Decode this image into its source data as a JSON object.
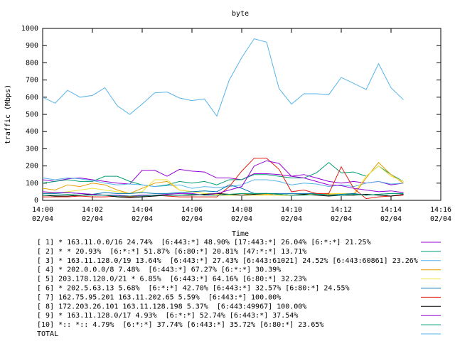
{
  "chart_data": {
    "type": "line",
    "title": "byte",
    "xlabel": "Time",
    "ylabel": "traffic (Mbps)",
    "xlim": [
      0,
      16
    ],
    "xticks": [
      {
        "value": 0,
        "label": "14:00\n02/04"
      },
      {
        "value": 2,
        "label": "14:02\n02/04"
      },
      {
        "value": 4,
        "label": "14:04\n02/04"
      },
      {
        "value": 6,
        "label": "14:06\n02/04"
      },
      {
        "value": 8,
        "label": "14:08\n02/04"
      },
      {
        "value": 10,
        "label": "14:10\n02/04"
      },
      {
        "value": 12,
        "label": "14:12\n02/04"
      },
      {
        "value": 14,
        "label": "14:14\n02/04"
      },
      {
        "value": 16,
        "label": "14:16\n02/04"
      }
    ],
    "ylim": [
      0,
      1000
    ],
    "yticks": [
      0,
      100,
      200,
      300,
      400,
      500,
      600,
      700,
      800,
      900,
      1000
    ],
    "x": [
      0,
      0.5,
      1,
      1.5,
      2,
      2.5,
      3,
      3.5,
      4,
      4.5,
      5,
      5.5,
      6,
      6.5,
      7,
      7.5,
      8,
      8.5,
      9,
      9.5,
      10,
      10.5,
      11,
      11.5,
      12,
      12.5,
      13,
      13.5,
      14,
      14.5
    ],
    "series": [
      {
        "name": "[ 1] * 163.11.0.0/16 24.74%  [6:443:*] 48.90% [17:443:*] 26.04% [6:*:*] 21.25%",
        "color": "#9400d3",
        "values": [
          120,
          110,
          125,
          130,
          120,
          110,
          100,
          95,
          175,
          175,
          140,
          180,
          170,
          165,
          130,
          130,
          120,
          155,
          155,
          150,
          140,
          150,
          130,
          110,
          100,
          110,
          100,
          110,
          90,
          100
        ]
      },
      {
        "name": "[ 2] * * 20.93%  [6:*:*] 51.87% [6:80:*] 20.81% [47:*:*] 13.71%",
        "color": "#009e73",
        "values": [
          100,
          110,
          120,
          110,
          110,
          140,
          140,
          110,
          90,
          80,
          90,
          110,
          100,
          110,
          90,
          120,
          120,
          150,
          150,
          140,
          130,
          130,
          160,
          220,
          160,
          165,
          140,
          200,
          150,
          110
        ]
      },
      {
        "name": "[ 3] * 163.11.128.0/19 13.64%  [6:443:*] 27.43% [6:443:61021] 24.52% [6:443:60861] 23.26%",
        "color": "#56b4e9",
        "values": [
          130,
          120,
          130,
          125,
          115,
          100,
          90,
          95,
          90,
          80,
          85,
          90,
          70,
          80,
          75,
          80,
          90,
          120,
          120,
          110,
          90,
          100,
          95,
          80,
          90,
          80,
          100,
          110,
          95,
          100
        ]
      },
      {
        "name": "[ 4] * 202.0.0.0/8 7.48%  [6:443:*] 67.27% [6:*:*] 30.39%",
        "color": "#e69f00",
        "values": [
          70,
          60,
          90,
          80,
          100,
          90,
          60,
          40,
          70,
          100,
          110,
          60,
          50,
          40,
          30,
          30,
          40,
          30,
          35,
          30,
          30,
          35,
          40,
          35,
          40,
          30,
          130,
          220,
          150,
          100
        ]
      },
      {
        "name": "[ 5] 203.178.120.0/21 * 6.85%  [6:443:*] 64.16% [6:80:*] 32.23%",
        "color": "#f0e442",
        "values": [
          50,
          40,
          50,
          60,
          70,
          60,
          50,
          40,
          50,
          120,
          120,
          60,
          50,
          40,
          35,
          30,
          30,
          30,
          30,
          30,
          30,
          35,
          35,
          40,
          40,
          40,
          140,
          200,
          140,
          110
        ]
      },
      {
        "name": "[ 6] * 202.5.63.13 5.68%  [6:*:*] 42.70% [6:443:*] 32.57% [6:80:*] 24.55%",
        "color": "#0072b2",
        "values": [
          40,
          40,
          45,
          40,
          35,
          45,
          40,
          40,
          45,
          40,
          40,
          45,
          50,
          55,
          50,
          90,
          70,
          40,
          40,
          40,
          40,
          40,
          40,
          30,
          35,
          40,
          30,
          35,
          40,
          40
        ]
      },
      {
        "name": "[ 7] 162.75.95.201 163.11.202.65 5.59%  [6:443:*] 100.00%",
        "color": "#e51e10",
        "values": [
          20,
          20,
          20,
          25,
          20,
          20,
          25,
          20,
          25,
          30,
          25,
          20,
          20,
          20,
          20,
          80,
          170,
          245,
          245,
          180,
          50,
          60,
          40,
          40,
          195,
          70,
          10,
          20,
          25,
          30
        ]
      },
      {
        "name": "[ 8] 172.203.26.101 163.11.128.198 5.37%  [6:443:49967] 100.00%",
        "color": "#000000",
        "values": [
          30,
          25,
          25,
          30,
          35,
          30,
          20,
          15,
          20,
          25,
          30,
          30,
          30,
          35,
          40,
          35,
          30,
          35,
          40,
          35,
          30,
          35,
          30,
          25,
          30,
          30,
          35,
          30,
          25,
          35
        ]
      },
      {
        "name": "[ 9] * 163.11.128.0/17 4.93%  [6:*:*] 52.74% [6:443:*] 37.54%",
        "color": "#9400d3",
        "values": [
          50,
          45,
          45,
          40,
          35,
          30,
          30,
          25,
          30,
          30,
          35,
          40,
          40,
          30,
          40,
          60,
          80,
          200,
          230,
          215,
          140,
          130,
          110,
          90,
          85,
          70,
          60,
          50,
          55,
          45
        ]
      },
      {
        "name": "[10] *:: *:: 4.79%  [6:*:*] 37.74% [6:443:*] 35.72% [6:80:*] 23.65%",
        "color": "#009e73",
        "values": [
          30,
          30,
          35,
          30,
          30,
          30,
          25,
          25,
          25,
          30,
          30,
          30,
          35,
          30,
          30,
          35,
          40,
          40,
          40,
          35,
          30,
          30,
          35,
          30,
          30,
          35,
          30,
          35,
          40,
          40
        ]
      },
      {
        "name": "TOTAL",
        "color": "#56b4e9",
        "values": [
          600,
          565,
          640,
          600,
          610,
          655,
          550,
          500,
          560,
          625,
          630,
          595,
          580,
          590,
          490,
          700,
          830,
          940,
          920,
          650,
          560,
          620,
          620,
          615,
          715,
          680,
          645,
          795,
          655,
          585
        ]
      }
    ]
  }
}
